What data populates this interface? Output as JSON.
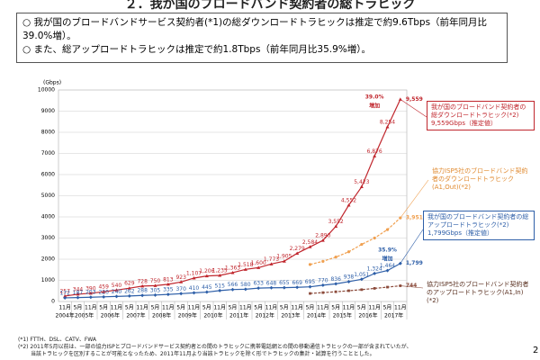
{
  "title": "２．我が国のブロードバンド契約者の総トラヒック",
  "summary": [
    "我が国のブロードバンドサービス契約者(*1)の総ダウンロードトラヒックは推定で約9.6Tbps（前年同月比39.0%増）。",
    "また、総アップロードトラヒックは推定で約1.8Tbps（前年同月比35.9%増）。"
  ],
  "chart_data": {
    "type": "line",
    "y_label": "(Gbps)",
    "categories": [
      "11月",
      "5月",
      "11月",
      "5月",
      "11月",
      "5月",
      "11月",
      "5月",
      "11月",
      "5月",
      "11月",
      "5月",
      "11月",
      "5月",
      "11月",
      "5月",
      "11月",
      "5月",
      "11月",
      "5月",
      "11月",
      "5月",
      "11月",
      "5月",
      "11月",
      "5月",
      "11月"
    ],
    "years": [
      "2004年",
      "2005年",
      "2006年",
      "2007年",
      "2008年",
      "2009年",
      "2010年",
      "2011年",
      "2012年",
      "2013年",
      "2014年",
      "2015年",
      "2016年",
      "2017年"
    ],
    "ylim": [
      0,
      10000
    ],
    "yticks": [
      0,
      1000,
      2000,
      3000,
      4000,
      5000,
      6000,
      7000,
      8000,
      9000,
      10000
    ],
    "grid": true,
    "series": [
      {
        "name": "我が国のブロードバンド契約者の総ダウンロードトラヒック(*2)",
        "color": "#c0262d",
        "marker": "triangle",
        "values": [
          257,
          344,
          390,
          459,
          540,
          629,
          728,
          750,
          813,
          923,
          1107,
          1206,
          1235,
          1363,
          1518,
          1600,
          1773,
          1905,
          2279,
          2584,
          2890,
          3552,
          4552,
          5423,
          6876,
          8254,
          9559
        ],
        "value_labels": [
          "257",
          "344",
          "390",
          "459",
          "540",
          "629",
          "728",
          "750",
          "813",
          "923",
          "1,107",
          "1,206",
          "1,235",
          "1,363",
          "1,518",
          "1,600",
          "1,773",
          "1,905",
          "2,279",
          "2,584",
          "2,890",
          "3,552",
          "4,552",
          "5,423",
          "6,876",
          "8,254",
          "9,559"
        ]
      },
      {
        "name": "協力ISP5社のブロードバンド契約者のダウンロードトラヒック(A1,Out)(*2)",
        "color": "#f0a050",
        "marker": "circle",
        "values": [
          null,
          null,
          null,
          null,
          null,
          null,
          null,
          null,
          null,
          null,
          null,
          null,
          null,
          null,
          null,
          null,
          null,
          null,
          null,
          1750,
          1900,
          2100,
          2350,
          2700,
          3000,
          3400,
          3951
        ],
        "value_labels": [
          null,
          null,
          null,
          null,
          null,
          null,
          null,
          null,
          null,
          null,
          null,
          null,
          null,
          null,
          null,
          null,
          null,
          null,
          null,
          null,
          null,
          null,
          null,
          null,
          null,
          null,
          "3,951"
        ]
      },
      {
        "name": "我が国のブロードバンド契約者の総アップロードトラヒック(*2)",
        "color": "#2e5fa8",
        "marker": "diamond",
        "values": [
          172,
          187,
          203,
          220,
          240,
          262,
          288,
          305,
          335,
          370,
          410,
          445,
          515,
          566,
          580,
          633,
          648,
          655,
          669,
          695,
          770,
          836,
          938,
          1051,
          1324,
          1464,
          1799
        ],
        "value_labels": [
          "172",
          "187",
          "203",
          "220",
          "240",
          "262",
          "288",
          "305",
          "335",
          "370",
          "410",
          "445",
          "515",
          "566",
          "580",
          "633",
          "648",
          "655",
          "669",
          "695",
          "770",
          "836",
          "938",
          "1,051",
          "1,324",
          "1,464",
          "1,799"
        ]
      },
      {
        "name": "協力ISP5社のブロードバンド契約者のアップロードトラヒック(A1,In)(*2)",
        "color": "#8b4a3a",
        "marker": "square",
        "values": [
          null,
          null,
          null,
          null,
          null,
          null,
          null,
          null,
          null,
          null,
          null,
          null,
          null,
          null,
          null,
          null,
          null,
          null,
          null,
          380,
          420,
          460,
          510,
          560,
          620,
          680,
          744
        ],
        "value_labels": [
          null,
          null,
          null,
          null,
          null,
          null,
          null,
          null,
          null,
          null,
          null,
          null,
          null,
          null,
          null,
          null,
          null,
          null,
          null,
          null,
          null,
          null,
          null,
          null,
          null,
          null,
          "744"
        ]
      }
    ],
    "annotations": [
      {
        "text": "39.0%",
        "sub": "増加"
      },
      {
        "text": "35.9%",
        "sub": "増加"
      },
      {
        "text": "9,559Gbps（推定値）"
      },
      {
        "text": "1,799Gbps（推定値）"
      }
    ]
  },
  "footnotes": [
    "(*1) FTTH、DSL、CATV、FWA",
    "(*2) 2011年5月以前は、一部の協力ISPとブロードバンドサービス契約者との間のトラヒックに携帯電話網との間の移動通信トラヒックの一部が含まれていたが、",
    "当該トラヒックを区別することが可能となったため、2011年11月より当該トラヒックを除く形でトラヒックの集計・試算を行うこととした。"
  ],
  "page_number": "2"
}
